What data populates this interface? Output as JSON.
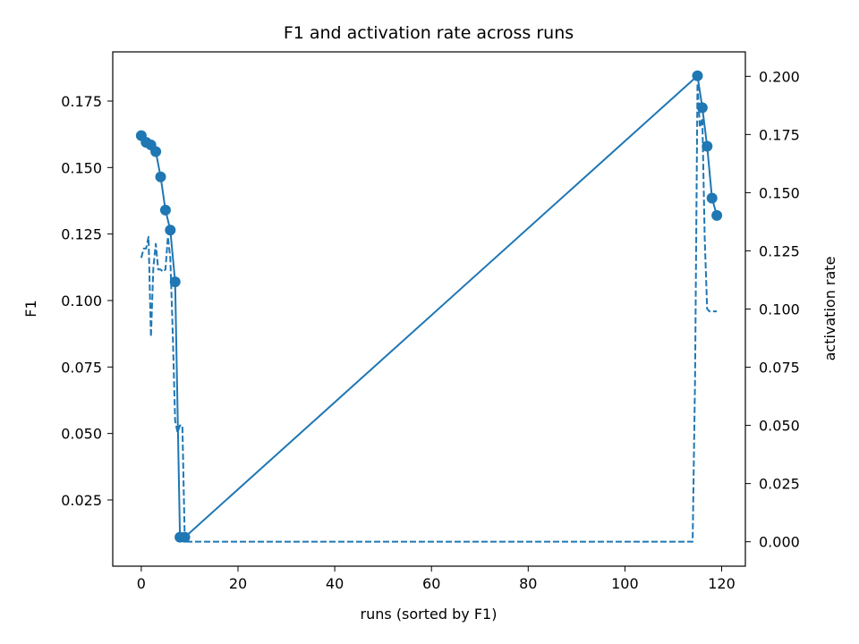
{
  "chart_data": {
    "type": "line",
    "title": "F1 and activation rate across runs",
    "xlabel": "runs (sorted by F1)",
    "ylabel_left": "F1",
    "ylabel_right": "activation rate",
    "xlim": [
      -5.9,
      124.9
    ],
    "ylim_left": [
      0.0001,
      0.1935
    ],
    "ylim_right": [
      -0.0105,
      0.2105
    ],
    "x_ticks": [
      0,
      20,
      40,
      60,
      80,
      100,
      120
    ],
    "y_left_ticks": [
      0.025,
      0.05,
      0.075,
      0.1,
      0.125,
      0.15,
      0.175
    ],
    "y_left_tick_labels": [
      "0.025",
      "0.050",
      "0.075",
      "0.100",
      "0.125",
      "0.150",
      "0.175"
    ],
    "y_right_ticks": [
      0,
      0.025,
      0.05,
      0.075,
      0.1,
      0.125,
      0.15,
      0.175,
      0.2
    ],
    "y_right_tick_labels": [
      "0.000",
      "0.025",
      "0.050",
      "0.075",
      "0.100",
      "0.125",
      "0.150",
      "0.175",
      "0.200"
    ],
    "grid": false,
    "color": "#1f77b4",
    "series": [
      {
        "axis": "left",
        "style": "solid-with-markers",
        "x": [
          0,
          1,
          2,
          3,
          4,
          5,
          6,
          7,
          8,
          9,
          115,
          116,
          117,
          118,
          119
        ],
        "y": [
          0.162,
          0.1595,
          0.1585,
          0.156,
          0.1465,
          0.134,
          0.1265,
          0.107,
          0.011,
          0.011,
          0.1845,
          0.1725,
          0.158,
          0.1385,
          0.132
        ]
      },
      {
        "axis": "right",
        "style": "dashed",
        "x": [
          0,
          0.5,
          1,
          1.5,
          2,
          2.5,
          3,
          3.5,
          4,
          4.5,
          5,
          5.5,
          6,
          6.5,
          7,
          7.5,
          8,
          8.5,
          9,
          9.5,
          10,
          114,
          114.5,
          115,
          115.5,
          116,
          116.5,
          117,
          117.5,
          118,
          119
        ],
        "y": [
          0.122,
          0.126,
          0.126,
          0.131,
          0.088,
          0.118,
          0.128,
          0.117,
          0.117,
          0.116,
          0.117,
          0.131,
          0.122,
          0.09,
          0.052,
          0.047,
          0.05,
          0.05,
          0,
          0,
          0,
          0,
          0.07,
          0.197,
          0.178,
          0.182,
          0.13,
          0.1,
          0.099,
          0.099,
          0.099
        ]
      }
    ]
  }
}
